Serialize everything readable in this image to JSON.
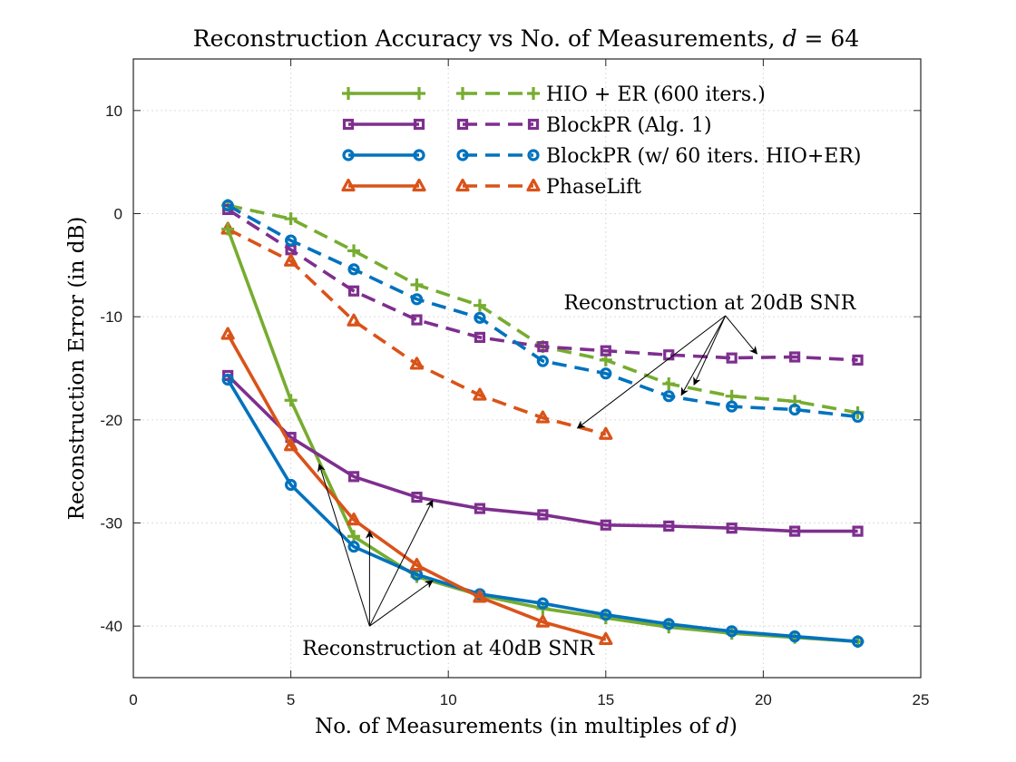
{
  "chart_data": {
    "type": "line",
    "title": "Reconstruction Accuracy vs No. of Measurements, d = 64",
    "xlabel": "No. of Measurements (in multiples of d)",
    "ylabel": "Reconstruction Error (in dB)",
    "xlim": [
      0,
      25
    ],
    "ylim": [
      -45,
      15
    ],
    "xticks": [
      0,
      5,
      10,
      15,
      20,
      25
    ],
    "yticks": [
      10,
      0,
      -10,
      -20,
      -30,
      -40
    ],
    "grid": true,
    "legend_placement": "top",
    "legend": [
      {
        "label": "HIO + ER (600 iters.)",
        "color": "#77ac30",
        "marker": "plus"
      },
      {
        "label": "BlockPR (Alg. 1)",
        "color": "#7e2f8e",
        "marker": "square"
      },
      {
        "label": "BlockPR (w/ 60 iters. HIO+ER)",
        "color": "#0072bd",
        "marker": "circle"
      },
      {
        "label": "PhaseLift",
        "color": "#d95319",
        "marker": "triangle"
      }
    ],
    "series": [
      {
        "name": "HIO + ER (600 iters.)",
        "snr": "20dB",
        "style": "dashed",
        "color": "#77ac30",
        "marker": "plus",
        "x": [
          3,
          5,
          7,
          9,
          11,
          13,
          15,
          17,
          19,
          21,
          23
        ],
        "y": [
          0.8,
          -0.5,
          -3.6,
          -6.9,
          -8.9,
          -12.9,
          -14.2,
          -16.5,
          -17.7,
          -18.2,
          -19.3
        ]
      },
      {
        "name": "BlockPR (Alg. 1)",
        "snr": "20dB",
        "style": "dashed",
        "color": "#7e2f8e",
        "marker": "square",
        "x": [
          3,
          5,
          7,
          9,
          11,
          13,
          15,
          17,
          19,
          21,
          23
        ],
        "y": [
          0.4,
          -3.5,
          -7.5,
          -10.3,
          -12.0,
          -12.9,
          -13.3,
          -13.7,
          -14.0,
          -13.9,
          -14.2
        ]
      },
      {
        "name": "BlockPR (w/ 60 iters. HIO+ER)",
        "snr": "20dB",
        "style": "dashed",
        "color": "#0072bd",
        "marker": "circle",
        "x": [
          3,
          5,
          7,
          9,
          11,
          13,
          15,
          17,
          19,
          21,
          23
        ],
        "y": [
          0.8,
          -2.6,
          -5.4,
          -8.3,
          -10.1,
          -14.3,
          -15.5,
          -17.7,
          -18.7,
          -19.0,
          -19.7
        ]
      },
      {
        "name": "PhaseLift",
        "snr": "20dB",
        "style": "dashed",
        "color": "#d95319",
        "marker": "triangle",
        "x": [
          3,
          5,
          7,
          9,
          11,
          13,
          15
        ],
        "y": [
          -1.5,
          -4.6,
          -10.4,
          -14.6,
          -17.6,
          -19.8,
          -21.4
        ]
      },
      {
        "name": "HIO + ER (600 iters.)",
        "snr": "40dB",
        "style": "solid",
        "color": "#77ac30",
        "marker": "plus",
        "x": [
          3,
          5,
          7,
          9,
          11,
          13,
          15,
          17,
          19,
          21,
          23
        ],
        "y": [
          -1.5,
          -18.1,
          -31.3,
          -35.2,
          -37.0,
          -38.3,
          -39.2,
          -40.1,
          -40.7,
          -41.1,
          -41.5
        ]
      },
      {
        "name": "BlockPR (Alg. 1)",
        "snr": "40dB",
        "style": "solid",
        "color": "#7e2f8e",
        "marker": "square",
        "x": [
          3,
          5,
          7,
          9,
          11,
          13,
          15,
          17,
          19,
          21,
          23
        ],
        "y": [
          -15.7,
          -21.7,
          -25.5,
          -27.5,
          -28.6,
          -29.2,
          -30.2,
          -30.3,
          -30.5,
          -30.8,
          -30.8
        ]
      },
      {
        "name": "BlockPR (w/ 60 iters. HIO+ER)",
        "snr": "40dB",
        "style": "solid",
        "color": "#0072bd",
        "marker": "circle",
        "x": [
          3,
          5,
          7,
          9,
          11,
          13,
          15,
          17,
          19,
          21,
          23
        ],
        "y": [
          -16.1,
          -26.3,
          -32.3,
          -35.0,
          -36.9,
          -37.8,
          -38.9,
          -39.8,
          -40.5,
          -41.0,
          -41.5
        ]
      },
      {
        "name": "PhaseLift",
        "snr": "40dB",
        "style": "solid",
        "color": "#d95319",
        "marker": "triangle",
        "x": [
          3,
          5,
          7,
          9,
          11,
          13,
          15
        ],
        "y": [
          -11.7,
          -22.5,
          -29.7,
          -34.1,
          -37.2,
          -39.6,
          -41.3
        ]
      }
    ],
    "annotations": [
      {
        "text": "Reconstruction at 20dB SNR",
        "origin": [
          18.8,
          -9.9
        ],
        "targets": [
          [
            14.1,
            -20.8
          ],
          [
            17.4,
            -17.6
          ],
          [
            17.8,
            -16.6
          ],
          [
            19.8,
            -13.6
          ]
        ]
      },
      {
        "text": "Reconstruction at 40dB SNR",
        "origin": [
          7.5,
          -40.0
        ],
        "targets": [
          [
            5.9,
            -24.3
          ],
          [
            7.5,
            -30.8
          ],
          [
            9.5,
            -27.8
          ],
          [
            9.5,
            -35.6
          ]
        ]
      }
    ]
  }
}
